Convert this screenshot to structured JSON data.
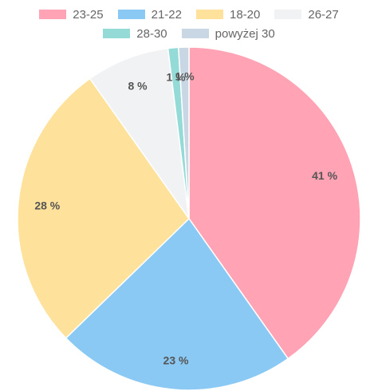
{
  "chart_data": {
    "type": "pie",
    "categories": [
      "23-25",
      "21-22",
      "18-20",
      "26-27",
      "28-30",
      "powyżej 30"
    ],
    "values": [
      41,
      23,
      28,
      8,
      1,
      1
    ],
    "labels": [
      "41 %",
      "23 %",
      "28 %",
      "8 %",
      "1 %",
      "1 %"
    ],
    "colors": [
      "#ffa3b5",
      "#8ac9f3",
      "#fee19a",
      "#f1f2f4",
      "#94dbd8",
      "#c9d7e5"
    ],
    "legend_position": "top"
  }
}
